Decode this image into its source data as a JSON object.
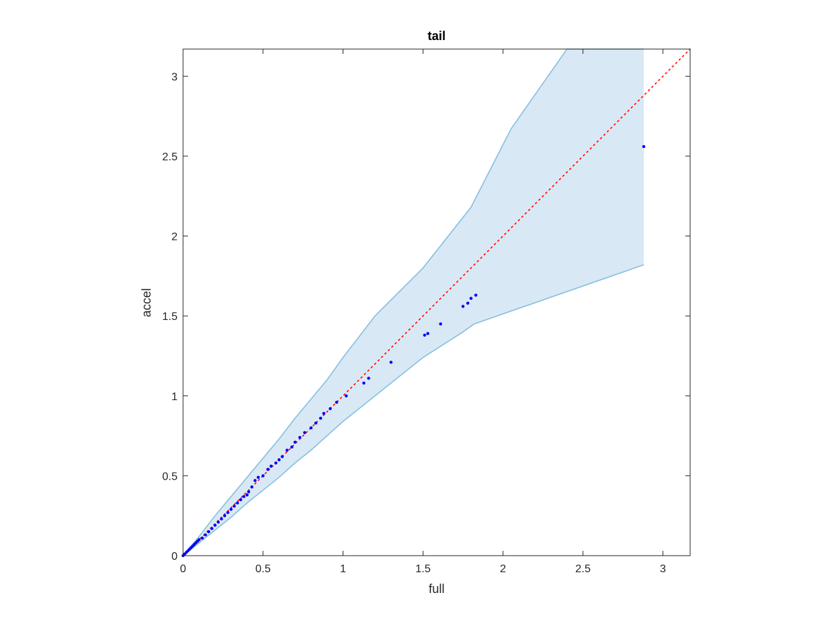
{
  "chart_data": {
    "type": "scatter",
    "title": "tail",
    "xlabel": "full",
    "ylabel": "accel",
    "xlim": [
      0,
      3.17
    ],
    "ylim": [
      0,
      3.17
    ],
    "xticks": [
      0,
      0.5,
      1,
      1.5,
      2,
      2.5,
      3
    ],
    "xtick_labels": [
      "0",
      "0.5",
      "1",
      "1.5",
      "2",
      "2.5",
      "3"
    ],
    "yticks": [
      0,
      0.5,
      1,
      1.5,
      2,
      2.5,
      3
    ],
    "ytick_labels": [
      "0",
      "0.5",
      "1",
      "1.5",
      "2",
      "2.5",
      "3"
    ],
    "grid": false,
    "reference_line": {
      "x": [
        0,
        3.17
      ],
      "y": [
        0,
        3.17
      ],
      "style": "dotted",
      "color": "#ff0000"
    },
    "band": {
      "color_fill": "#d9e8f5",
      "color_edge": "#86bfe0",
      "upper": [
        [
          0,
          0
        ],
        [
          0.1,
          0.12
        ],
        [
          0.2,
          0.25
        ],
        [
          0.3,
          0.37
        ],
        [
          0.4,
          0.49
        ],
        [
          0.5,
          0.61
        ],
        [
          0.6,
          0.73
        ],
        [
          0.7,
          0.86
        ],
        [
          0.8,
          0.98
        ],
        [
          0.9,
          1.1
        ],
        [
          1.0,
          1.24
        ],
        [
          1.2,
          1.5
        ],
        [
          1.5,
          1.8
        ],
        [
          1.8,
          2.18
        ],
        [
          2.05,
          2.67
        ],
        [
          2.4,
          3.17
        ],
        [
          2.88,
          3.17
        ]
      ],
      "lower": [
        [
          0,
          0
        ],
        [
          0.1,
          0.08
        ],
        [
          0.2,
          0.16
        ],
        [
          0.3,
          0.24
        ],
        [
          0.4,
          0.33
        ],
        [
          0.5,
          0.41
        ],
        [
          0.6,
          0.49
        ],
        [
          0.7,
          0.58
        ],
        [
          0.8,
          0.66
        ],
        [
          0.9,
          0.75
        ],
        [
          1.0,
          0.84
        ],
        [
          1.2,
          1.0
        ],
        [
          1.5,
          1.24
        ],
        [
          1.75,
          1.4
        ],
        [
          1.82,
          1.45
        ],
        [
          2.88,
          1.82
        ]
      ]
    },
    "series": [
      {
        "color": "#0000ff",
        "points": [
          [
            0.0,
            0.0
          ],
          [
            0.01,
            0.01
          ],
          [
            0.02,
            0.02
          ],
          [
            0.03,
            0.03
          ],
          [
            0.04,
            0.04
          ],
          [
            0.05,
            0.05
          ],
          [
            0.06,
            0.06
          ],
          [
            0.07,
            0.07
          ],
          [
            0.08,
            0.08
          ],
          [
            0.09,
            0.09
          ],
          [
            0.1,
            0.1
          ],
          [
            0.12,
            0.11
          ],
          [
            0.14,
            0.13
          ],
          [
            0.16,
            0.15
          ],
          [
            0.18,
            0.17
          ],
          [
            0.2,
            0.19
          ],
          [
            0.22,
            0.21
          ],
          [
            0.24,
            0.23
          ],
          [
            0.26,
            0.25
          ],
          [
            0.28,
            0.27
          ],
          [
            0.3,
            0.29
          ],
          [
            0.32,
            0.31
          ],
          [
            0.34,
            0.33
          ],
          [
            0.36,
            0.35
          ],
          [
            0.38,
            0.37
          ],
          [
            0.4,
            0.38
          ],
          [
            0.41,
            0.4
          ],
          [
            0.43,
            0.43
          ],
          [
            0.45,
            0.47
          ],
          [
            0.47,
            0.49
          ],
          [
            0.5,
            0.5
          ],
          [
            0.53,
            0.54
          ],
          [
            0.55,
            0.56
          ],
          [
            0.58,
            0.58
          ],
          [
            0.6,
            0.6
          ],
          [
            0.62,
            0.62
          ],
          [
            0.65,
            0.66
          ],
          [
            0.68,
            0.68
          ],
          [
            0.7,
            0.71
          ],
          [
            0.73,
            0.74
          ],
          [
            0.76,
            0.77
          ],
          [
            0.8,
            0.8
          ],
          [
            0.83,
            0.83
          ],
          [
            0.86,
            0.86
          ],
          [
            0.88,
            0.89
          ],
          [
            0.92,
            0.92
          ],
          [
            0.96,
            0.96
          ],
          [
            1.02,
            1.0
          ],
          [
            1.13,
            1.08
          ],
          [
            1.16,
            1.11
          ],
          [
            1.3,
            1.21
          ],
          [
            1.51,
            1.38
          ],
          [
            1.53,
            1.39
          ],
          [
            1.61,
            1.45
          ],
          [
            1.75,
            1.56
          ],
          [
            1.78,
            1.58
          ],
          [
            1.8,
            1.61
          ],
          [
            1.83,
            1.63
          ],
          [
            2.88,
            2.56
          ]
        ]
      }
    ]
  }
}
